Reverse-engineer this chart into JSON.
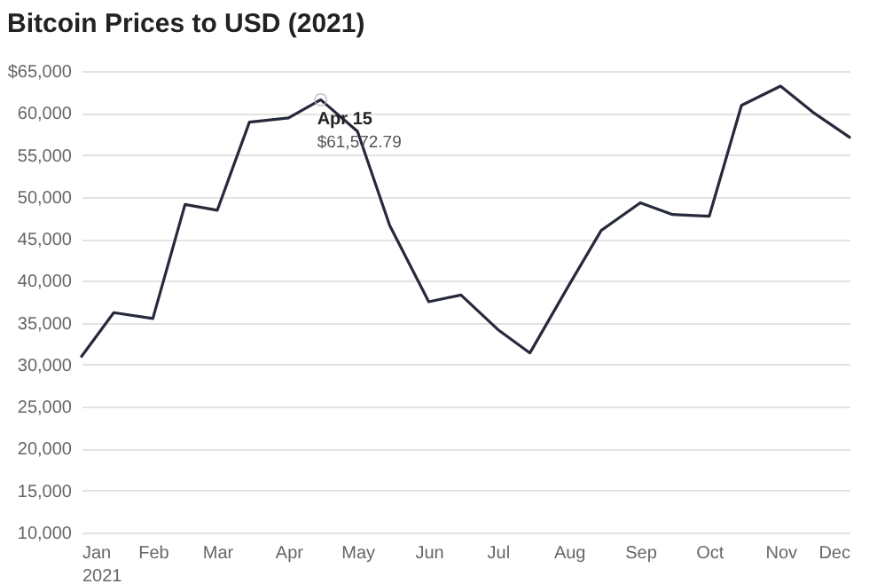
{
  "chart_data": {
    "type": "line",
    "title": "Bitcoin Prices to USD (2021)",
    "x": [
      "2021-01-01",
      "2021-01-15",
      "2021-02-01",
      "2021-02-15",
      "2021-03-01",
      "2021-03-15",
      "2021-04-01",
      "2021-04-15",
      "2021-05-01",
      "2021-05-15",
      "2021-06-01",
      "2021-06-15",
      "2021-07-01",
      "2021-07-15",
      "2021-08-01",
      "2021-08-15",
      "2021-09-01",
      "2021-09-15",
      "2021-10-01",
      "2021-10-15",
      "2021-11-01",
      "2021-11-15",
      "2021-12-01"
    ],
    "series": [
      {
        "color": "#262a3b",
        "values": [
          31000,
          36200,
          35500,
          49100,
          48400,
          58900,
          59400,
          61572.79,
          57800,
          46600,
          37500,
          38300,
          34200,
          31400,
          39500,
          46000,
          49300,
          47900,
          47700,
          60900,
          63200,
          60100,
          57100
        ]
      }
    ],
    "xlim": [
      "2021-01-01",
      "2021-12-01"
    ],
    "xticks": [
      {
        "value": "2021-01-01",
        "label": "Jan 2021"
      },
      {
        "value": "2021-02-01",
        "label": "Feb"
      },
      {
        "value": "2021-03-01",
        "label": "Mar"
      },
      {
        "value": "2021-04-01",
        "label": "Apr"
      },
      {
        "value": "2021-05-01",
        "label": "May"
      },
      {
        "value": "2021-06-01",
        "label": "Jun"
      },
      {
        "value": "2021-07-01",
        "label": "Jul"
      },
      {
        "value": "2021-08-01",
        "label": "Aug"
      },
      {
        "value": "2021-09-01",
        "label": "Sep"
      },
      {
        "value": "2021-10-01",
        "label": "Oct"
      },
      {
        "value": "2021-11-01",
        "label": "Nov"
      },
      {
        "value": "2021-12-01",
        "label": "Dec"
      }
    ],
    "ylim": [
      10000,
      65000
    ],
    "yticks": [
      {
        "value": 10000,
        "label": "10,000"
      },
      {
        "value": 15000,
        "label": "15,000"
      },
      {
        "value": 20000,
        "label": "20,000"
      },
      {
        "value": 25000,
        "label": "25,000"
      },
      {
        "value": 30000,
        "label": "30,000"
      },
      {
        "value": 35000,
        "label": "35,000"
      },
      {
        "value": 40000,
        "label": "40,000"
      },
      {
        "value": 45000,
        "label": "45,000"
      },
      {
        "value": 50000,
        "label": "50,000"
      },
      {
        "value": 55000,
        "label": "55,000"
      },
      {
        "value": 60000,
        "label": "60,000"
      },
      {
        "value": 65000,
        "label": "$65,000"
      }
    ],
    "grid": "y",
    "marker": "none",
    "line_style": "solid",
    "annotations": [
      {
        "text": "Apr 15",
        "x": "2021-04-15",
        "y": 61572.79
      },
      {
        "text": "$61,572.79",
        "x": "2021-04-15",
        "y": 61572.79
      }
    ]
  }
}
